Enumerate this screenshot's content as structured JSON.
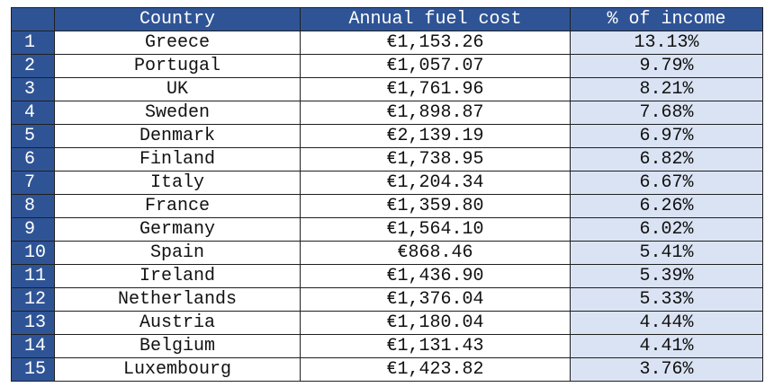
{
  "table": {
    "columns": [
      "",
      "Country",
      "Annual fuel cost",
      "% of income"
    ],
    "rows": [
      [
        "1",
        "Greece",
        "€1,153.26",
        "13.13%"
      ],
      [
        "2",
        "Portugal",
        "€1,057.07",
        "9.79%"
      ],
      [
        "3",
        "UK",
        "€1,761.96",
        "8.21%"
      ],
      [
        "4",
        "Sweden",
        "€1,898.87",
        "7.68%"
      ],
      [
        "5",
        "Denmark",
        "€2,139.19",
        "6.97%"
      ],
      [
        "6",
        "Finland",
        "€1,738.95",
        "6.82%"
      ],
      [
        "7",
        "Italy",
        "€1,204.34",
        "6.67%"
      ],
      [
        "8",
        "France",
        "€1,359.80",
        "6.26%"
      ],
      [
        "9",
        "Germany",
        "€1,564.10",
        "6.02%"
      ],
      [
        "10",
        "Spain",
        "€868.46",
        "5.41%"
      ],
      [
        "11",
        "Ireland",
        "€1,436.90",
        "5.39%"
      ],
      [
        "12",
        "Netherlands",
        "€1,376.04",
        "5.33%"
      ],
      [
        "13",
        "Austria",
        "€1,180.04",
        "4.44%"
      ],
      [
        "14",
        "Belgium",
        "€1,131.43",
        "4.41%"
      ],
      [
        "15",
        "Luxembourg",
        "€1,423.82",
        "3.76%"
      ]
    ]
  }
}
